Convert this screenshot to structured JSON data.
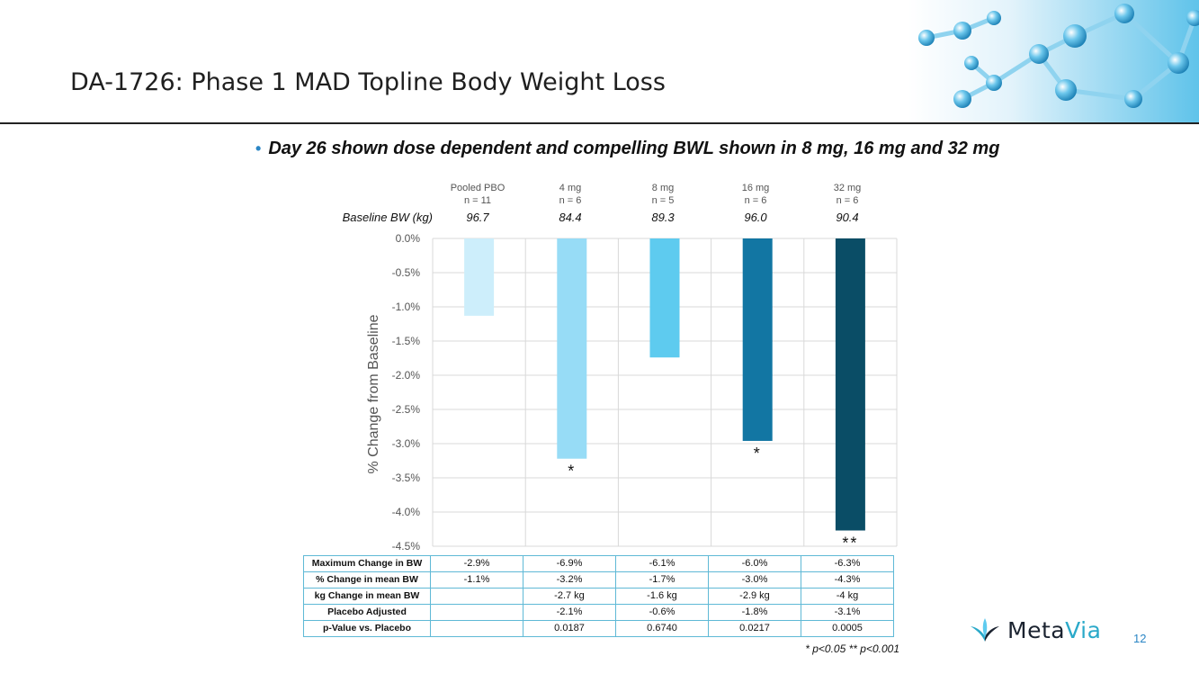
{
  "slide": {
    "title": "DA-1726: Phase 1 MAD Topline Body Weight Loss",
    "bullet": "Day 26 shown dose dependent and compelling BWL shown in 8 mg, 16 mg and 32 mg",
    "page_number": "12",
    "logo_text_a": "Meta",
    "logo_text_b": "Via"
  },
  "chart_data": {
    "type": "bar",
    "title": "",
    "ylabel": "% Change from Baseline",
    "xlabel": "",
    "ylim": [
      -4.5,
      0
    ],
    "ytick_step": 0.5,
    "grid": true,
    "categories": [
      "Pooled PBO",
      "4 mg",
      "8 mg",
      "16 mg",
      "32 mg"
    ],
    "n_labels": [
      "n = 11",
      "n = 6",
      "n = 5",
      "n = 6",
      "n = 6"
    ],
    "values": [
      -1.13,
      -3.22,
      -1.74,
      -2.96,
      -4.27
    ],
    "colors": [
      "#cdeefb",
      "#97dcf6",
      "#5ecbef",
      "#1276a3",
      "#0a4d66"
    ],
    "significance": [
      "",
      "*",
      "",
      "*",
      "**"
    ],
    "baseline_label": "Baseline BW (kg)",
    "baseline_values": [
      "96.7",
      "84.4",
      "89.3",
      "96.0",
      "90.4"
    ]
  },
  "table": {
    "rows": [
      {
        "label": "Maximum Change in BW",
        "cells": [
          "-2.9%",
          "-6.9%",
          "-6.1%",
          "-6.0%",
          "-6.3%"
        ]
      },
      {
        "label": "% Change in mean BW",
        "cells": [
          "-1.1%",
          "-3.2%",
          "-1.7%",
          "-3.0%",
          "-4.3%"
        ]
      },
      {
        "label": "kg Change in mean BW",
        "cells": [
          "",
          "-2.7 kg",
          "-1.6 kg",
          "-2.9 kg",
          "-4 kg"
        ]
      },
      {
        "label": "Placebo Adjusted",
        "cells": [
          "",
          "-2.1%",
          "-0.6%",
          "-1.8%",
          "-3.1%"
        ]
      },
      {
        "label": "p-Value vs. Placebo",
        "cells": [
          "",
          "0.0187",
          "0.6740",
          "0.0217",
          "0.0005"
        ]
      }
    ]
  },
  "footnote": "* p<0.05   ** p<0.001"
}
